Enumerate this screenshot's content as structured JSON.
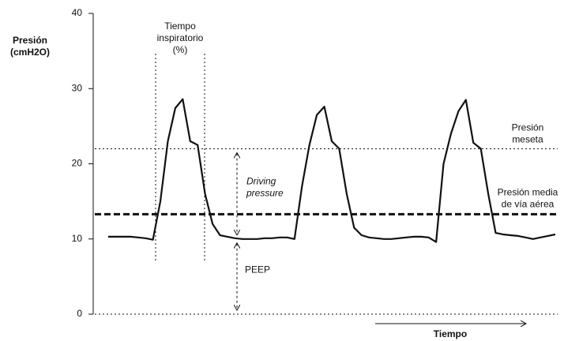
{
  "chart_data": {
    "type": "line",
    "y_label": [
      "Presión",
      "(cmH2O)"
    ],
    "ylim": [
      0,
      40
    ],
    "yticks": [
      0,
      10,
      20,
      30,
      40
    ],
    "series": [
      {
        "color": "#111111",
        "values": [
          10.3,
          10.3,
          10.3,
          10.3,
          10.2,
          10.1,
          9.9,
          15,
          23,
          27.4,
          28.6,
          23,
          22.5,
          16,
          12,
          10.5,
          10.3,
          10.1,
          10,
          10,
          10,
          10.1,
          10.1,
          10.2,
          10.2,
          10,
          17,
          22.5,
          26.5,
          27.6,
          23,
          22,
          16,
          11.5,
          10.5,
          10.2,
          10.1,
          10,
          10,
          10.1,
          10.2,
          10.3,
          10.3,
          10.2,
          9.6,
          20,
          24,
          27,
          28.5,
          22.8,
          22,
          16,
          10.8,
          10.6,
          10.5,
          10.4,
          10.2,
          10,
          10.2,
          10.4,
          10.6
        ]
      }
    ],
    "reference_lines": [
      {
        "label": [
          "Presión",
          "meseta"
        ],
        "value": 22,
        "style": "dotted"
      },
      {
        "label": [
          "Presión media",
          "de vía aérea"
        ],
        "value": 13.3,
        "style": "dashed"
      },
      {
        "value": 0,
        "style": "dotted"
      }
    ],
    "annotations": [
      {
        "text": [
          "Driving",
          "pressure"
        ],
        "range": [
          10,
          22
        ]
      },
      {
        "text": [
          "PEEP"
        ],
        "range": [
          0,
          10
        ]
      }
    ],
    "inspiratory_label": [
      "Tiempo",
      "inspiratorio",
      "(%)"
    ],
    "x_label": "Tiempo"
  }
}
